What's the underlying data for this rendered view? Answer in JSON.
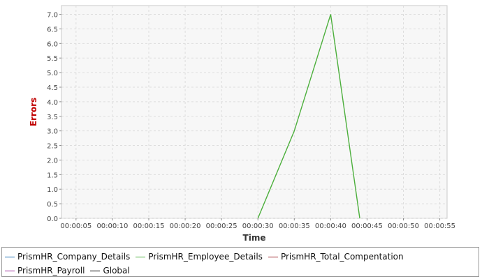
{
  "chart_data": {
    "type": "line",
    "title": "",
    "xlabel": "Time",
    "ylabel": "Errors",
    "x_ticks": [
      "00:00:05",
      "00:00:10",
      "00:00:15",
      "00:00:20",
      "00:00:25",
      "00:00:30",
      "00:00:35",
      "00:00:40",
      "00:00:45",
      "00:00:50",
      "00:00:55"
    ],
    "y_ticks": [
      "0.0",
      "0.5",
      "1.0",
      "1.5",
      "2.0",
      "2.5",
      "3.0",
      "3.5",
      "4.0",
      "4.5",
      "5.0",
      "5.5",
      "6.0",
      "6.5",
      "7.0"
    ],
    "xlim": [
      "00:00:03",
      "00:00:56"
    ],
    "ylim": [
      0,
      7.3
    ],
    "grid": true,
    "legend_position": "bottom",
    "series": [
      {
        "name": "PrismHR_Company_Details",
        "color": "#1f6fb4",
        "points": []
      },
      {
        "name": "PrismHR_Employee_Details",
        "color": "#4caf3c",
        "points": [
          [
            "00:00:30",
            0
          ],
          [
            "00:00:35",
            3
          ],
          [
            "00:00:40",
            7
          ],
          [
            "00:00:44",
            0
          ]
        ]
      },
      {
        "name": "PrismHR_Total_Compentation",
        "color": "#a0282d",
        "points": []
      },
      {
        "name": "PrismHR_Payroll",
        "color": "#9b2d9b",
        "points": []
      },
      {
        "name": "Global",
        "color": "#000000",
        "points": []
      }
    ],
    "colors": {
      "ylabel": "#c00000",
      "plot_background": "#f7f7f7",
      "grid": "#dddddd"
    }
  }
}
